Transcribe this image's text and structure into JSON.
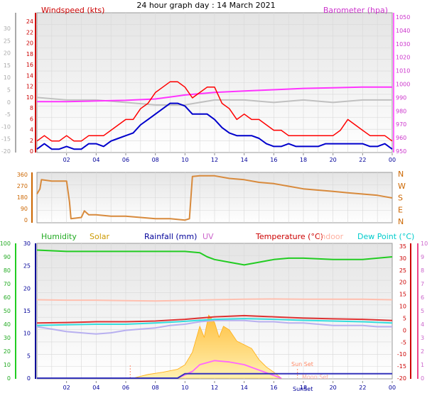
{
  "title": "24 hour graph day : 14 March 2021",
  "colors": {
    "windspeed": "#ff0000",
    "gust": "#0000cc",
    "barometer": "#ff33ff",
    "baro_label": "#cc33cc",
    "grey_series": "#c0c0c0",
    "direction": "#d88a3c",
    "humidity": "#22cc22",
    "solar": "#ffd25a",
    "solar_text": "#cc9900",
    "rainfall": "#3333bb",
    "rain_text": "#000099",
    "uv": "#ff66ff",
    "uv_text": "#cc66cc",
    "temperature": "#dd3333",
    "temp_text": "#cc0000",
    "indoor": "#ffc0b0",
    "indoor_text": "#ffb0a0",
    "dewpoint": "#33dddd",
    "dewpoint_text": "#00cccc",
    "apparent": "#b8b0f0",
    "sunrise": "#ff8866",
    "right_axis_pink": "#ee4488",
    "panel_grad_top": "#ececec",
    "panel_grad_bottom": "#ffffff"
  },
  "x_ticks": [
    "02",
    "04",
    "06",
    "08",
    "10",
    "12",
    "14",
    "16",
    "18",
    "20",
    "22",
    "00"
  ],
  "chart_data": [
    {
      "type": "line",
      "panel": "wind",
      "title": "24 hour graph day : 14 March 2021",
      "left_axis_label": "Windspeed (kts)",
      "right_axis_label": "Barometer (hpa)",
      "left_ticks": [
        "24",
        "22",
        "20",
        "18",
        "16",
        "14",
        "12",
        "10",
        "8",
        "6",
        "4",
        "2",
        "0"
      ],
      "left_ylim": [
        0,
        25
      ],
      "outer_left_ticks": [
        "30",
        "25",
        "20",
        "15",
        "10",
        "5",
        "0",
        "-5",
        "-10",
        "-15",
        "-20"
      ],
      "right_ticks": [
        "1050",
        "1040",
        "1030",
        "1020",
        "1010",
        "1000",
        "990",
        "980",
        "970",
        "960",
        "950"
      ],
      "right_ylim": [
        950,
        1052
      ],
      "series": [
        {
          "name": "Windspeed",
          "axis": "left",
          "x": [
            0,
            0.5,
            1,
            1.5,
            2,
            2.5,
            3,
            3.5,
            4,
            4.5,
            5,
            5.5,
            6,
            6.5,
            7,
            7.5,
            8,
            8.5,
            9,
            9.5,
            10,
            10.5,
            11,
            11.5,
            12,
            12.5,
            13,
            13.5,
            14,
            14.5,
            15,
            15.5,
            16,
            16.5,
            17,
            17.5,
            18,
            18.5,
            19,
            19.5,
            20,
            20.5,
            21,
            21.5,
            22,
            22.5,
            23,
            23.5,
            24
          ],
          "y": [
            2,
            3,
            2,
            2,
            3,
            2,
            2,
            3,
            3,
            3,
            4,
            5,
            6,
            6,
            8,
            9,
            11,
            12,
            13,
            13,
            12,
            10,
            11,
            12,
            12,
            9,
            8,
            6,
            7,
            6,
            6,
            5,
            4,
            4,
            3,
            3,
            3,
            3,
            3,
            3,
            3,
            4,
            6,
            5,
            4,
            3,
            3,
            3,
            2
          ]
        },
        {
          "name": "Gust",
          "axis": "left",
          "x": [
            0,
            0.5,
            1,
            1.5,
            2,
            2.5,
            3,
            3.5,
            4,
            4.5,
            5,
            5.5,
            6,
            6.5,
            7,
            7.5,
            8,
            8.5,
            9,
            9.5,
            10,
            10.5,
            11,
            11.5,
            12,
            12.5,
            13,
            13.5,
            14,
            14.5,
            15,
            15.5,
            16,
            16.5,
            17,
            17.5,
            18,
            18.5,
            19,
            19.5,
            20,
            20.5,
            21,
            21.5,
            22,
            22.5,
            23,
            23.5,
            24
          ],
          "y": [
            0.5,
            1.5,
            0.5,
            0.5,
            1,
            0.5,
            0.5,
            1.5,
            1.5,
            1,
            2,
            2.5,
            3,
            3.5,
            5,
            6,
            7,
            8,
            9,
            9,
            8.5,
            7,
            7,
            7,
            6,
            4.5,
            3.5,
            3,
            3,
            3,
            2.5,
            1.5,
            1,
            1,
            1.5,
            1,
            1,
            1,
            1,
            1.5,
            1.5,
            1.5,
            1.5,
            1.5,
            1.5,
            1,
            1,
            1.5,
            0.5
          ]
        },
        {
          "name": "Barometer",
          "axis": "right",
          "x": [
            0,
            2,
            4,
            6,
            8,
            10,
            12,
            14,
            16,
            18,
            20,
            22,
            24
          ],
          "y": [
            988,
            988,
            988.5,
            989,
            990,
            993,
            995,
            996,
            997,
            998,
            998.5,
            999,
            999
          ]
        },
        {
          "name": "",
          "axis": "outer_left",
          "x": [
            0,
            2,
            4,
            6,
            8,
            10,
            12,
            14,
            16,
            18,
            20,
            22,
            24
          ],
          "y": [
            2,
            1,
            1,
            0,
            -1,
            -1,
            1,
            1,
            0,
            1,
            0,
            1,
            1
          ]
        }
      ]
    },
    {
      "type": "line",
      "panel": "direction",
      "left_ticks": [
        "360",
        "270",
        "180",
        "90",
        "0"
      ],
      "ylim": [
        0,
        360
      ],
      "right_ticks": [
        "N",
        "W",
        "S",
        "E",
        "N"
      ],
      "series": [
        {
          "name": "Wind direction",
          "x": [
            0,
            0.2,
            0.3,
            1,
            2,
            2.2,
            2.3,
            3,
            3.2,
            3.5,
            4,
            5,
            6,
            7,
            8,
            9,
            10,
            10.3,
            10.5,
            11,
            12,
            13,
            14,
            15,
            16,
            17,
            18,
            19,
            20,
            21,
            22,
            23,
            23.5,
            24
          ],
          "y": [
            210,
            250,
            320,
            310,
            310,
            150,
            20,
            30,
            80,
            50,
            50,
            40,
            40,
            30,
            20,
            20,
            10,
            20,
            345,
            350,
            350,
            330,
            320,
            300,
            290,
            270,
            250,
            240,
            230,
            220,
            210,
            200,
            190,
            180
          ]
        }
      ]
    },
    {
      "type": "line",
      "panel": "temperature",
      "legend": [
        "Humidity",
        "Solar",
        "Rainfall (mm)",
        "UV",
        "Temperature (°C)",
        "Indoor",
        "Dew Point (°C)"
      ],
      "left_ticks_humidity": [
        "100",
        "90",
        "80",
        "70",
        "60",
        "50",
        "40",
        "30",
        "20",
        "10",
        "0"
      ],
      "left_ticks_rain": [
        "30",
        "25",
        "20",
        "15",
        "10",
        "5",
        "0"
      ],
      "right_ticks_temp": [
        "35",
        "30",
        "25",
        "20",
        "15",
        "10",
        "5",
        "0",
        "-5",
        "-10",
        "-15",
        "-20"
      ],
      "right_ticks_uv": [
        "10",
        "9",
        "8",
        "7",
        "6",
        "5",
        "4",
        "3",
        "2",
        "1",
        "0"
      ],
      "annotations": [
        "Sun Set",
        "Moon Set",
        "SunSet"
      ],
      "series": [
        {
          "name": "Humidity",
          "axis": "humidity",
          "x": [
            0,
            2,
            4,
            6,
            8,
            9,
            10,
            11,
            11.5,
            12,
            13,
            14,
            15,
            16,
            17,
            18,
            20,
            22,
            24
          ],
          "y": [
            95,
            94,
            94,
            94,
            94,
            94,
            94,
            93,
            90,
            88,
            86,
            84,
            86,
            88,
            89,
            89,
            88,
            88,
            90
          ]
        },
        {
          "name": "Temperature (°C)",
          "axis": "temp",
          "x": [
            0,
            2,
            4,
            6,
            8,
            10,
            12,
            14,
            16,
            18,
            20,
            22,
            24
          ],
          "y": [
            2.5,
            2.7,
            3,
            3,
            3.3,
            4,
            5,
            5.5,
            5,
            4.5,
            4.2,
            4,
            3.5
          ]
        },
        {
          "name": "Indoor",
          "axis": "temp",
          "x": [
            0,
            2,
            4,
            6,
            8,
            10,
            12,
            14,
            16,
            18,
            20,
            22,
            24
          ],
          "y": [
            12,
            11.8,
            11.8,
            11.6,
            11.5,
            11.7,
            12,
            12.2,
            12.3,
            12.2,
            12.2,
            12.2,
            12
          ]
        },
        {
          "name": "Dew Point (°C)",
          "axis": "temp",
          "x": [
            0,
            2,
            4,
            6,
            8,
            10,
            12,
            14,
            16,
            18,
            20,
            22,
            24
          ],
          "y": [
            1.5,
            1.8,
            2,
            2,
            2.5,
            3.2,
            4,
            4.3,
            4,
            3.6,
            3.3,
            3,
            2.5
          ]
        },
        {
          "name": "",
          "axis": "temp",
          "x": [
            0,
            1,
            2,
            3,
            4,
            5,
            6,
            7,
            8,
            9,
            10,
            11,
            12,
            13,
            14,
            15,
            16,
            17,
            18,
            19,
            20,
            21,
            22,
            23,
            24
          ],
          "y": [
            1,
            0,
            -1,
            -1.5,
            -2,
            -1.5,
            -0.5,
            0,
            0.5,
            1.5,
            2,
            3,
            3.5,
            3.5,
            3.5,
            3,
            3,
            2.5,
            2.5,
            2,
            1.5,
            1.5,
            1.5,
            1,
            1
          ]
        },
        {
          "name": "Rainfall (mm)",
          "axis": "rain",
          "x": [
            0,
            8,
            9.5,
            10,
            24
          ],
          "y": [
            0,
            0,
            0,
            1,
            1
          ]
        },
        {
          "name": "Solar",
          "axis": "solar",
          "x": [
            6.5,
            7.5,
            8.5,
            9.5,
            10,
            10.5,
            11,
            11.3,
            11.6,
            12,
            12.3,
            12.6,
            13,
            13.5,
            14,
            14.5,
            15,
            15.5,
            16,
            16.5
          ],
          "y": [
            0,
            0.05,
            0.08,
            0.12,
            0.18,
            0.35,
            0.7,
            0.55,
            0.85,
            0.75,
            0.55,
            0.7,
            0.65,
            0.5,
            0.45,
            0.4,
            0.25,
            0.15,
            0.08,
            0
          ]
        },
        {
          "name": "UV",
          "axis": "uv",
          "x": [
            9.5,
            10.5,
            11,
            12,
            13,
            14,
            15,
            16,
            16.5
          ],
          "y": [
            0,
            0.5,
            1,
            1.3,
            1.2,
            1,
            0.6,
            0.2,
            0
          ]
        }
      ]
    }
  ]
}
